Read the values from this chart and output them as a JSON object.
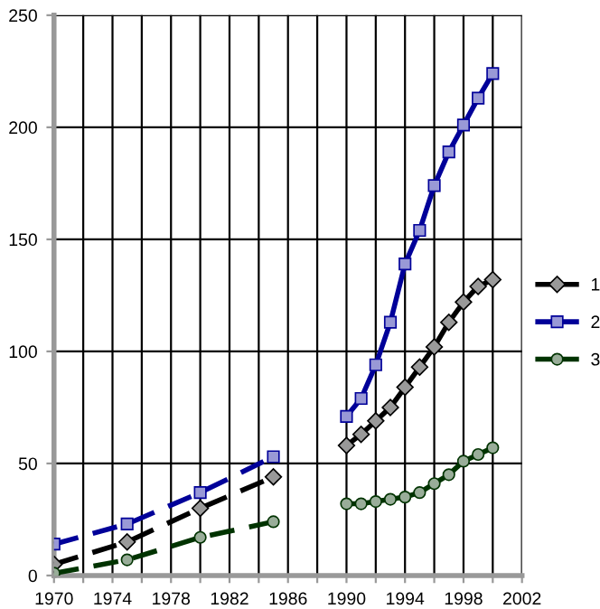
{
  "chart_data": {
    "type": "line",
    "xlim": [
      1970,
      2002
    ],
    "ylim": [
      0,
      250
    ],
    "xticks": [
      1970,
      {
        "value": 1972,
        "label": null
      },
      1974,
      {
        "value": 1976,
        "label": null
      },
      1978,
      {
        "value": 1980,
        "label": null
      },
      1982,
      {
        "value": 1984,
        "label": null
      },
      1986,
      {
        "value": 1988,
        "label": null
      },
      1990,
      {
        "value": 1992,
        "label": null
      },
      1994,
      {
        "value": 1996,
        "label": null
      },
      1998,
      {
        "value": 2000,
        "label": null
      },
      2002
    ],
    "yticks": [
      0,
      50,
      100,
      150,
      200,
      250
    ],
    "grid": true,
    "legend": "right",
    "series": [
      {
        "name": "1",
        "color": "#000000",
        "marker": "diamond",
        "line_style": "solid",
        "x": [
          1990,
          1991,
          1992,
          1993,
          1994,
          1995,
          1996,
          1997,
          1998,
          1999,
          2000
        ],
        "values": [
          58,
          63,
          69,
          75,
          84,
          93,
          102,
          113,
          122,
          129,
          132
        ]
      },
      {
        "name": "2",
        "color": "#000099",
        "marker": "square",
        "line_style": "solid",
        "x": [
          1990,
          1991,
          1992,
          1993,
          1994,
          1995,
          1996,
          1997,
          1998,
          1999,
          2000
        ],
        "values": [
          71,
          79,
          94,
          113,
          139,
          154,
          174,
          189,
          201,
          213,
          224
        ]
      },
      {
        "name": "3",
        "color": "#003300",
        "marker": "circle",
        "line_style": "solid",
        "x": [
          1990,
          1991,
          1992,
          1993,
          1994,
          1995,
          1996,
          1997,
          1998,
          1999,
          2000
        ],
        "values": [
          32,
          32,
          33,
          34,
          35,
          37,
          41,
          45,
          51,
          54,
          57
        ]
      },
      {
        "color": "#000000",
        "marker": "diamond",
        "line_style": "dashed",
        "x": [
          1970,
          1975,
          1980,
          1985
        ],
        "values": [
          5,
          15,
          30,
          44
        ]
      },
      {
        "color": "#000099",
        "marker": "square",
        "line_style": "dashed",
        "x": [
          1970,
          1975,
          1980,
          1985
        ],
        "values": [
          14,
          23,
          37,
          53
        ]
      },
      {
        "color": "#003300",
        "marker": "circle",
        "line_style": "dashed",
        "x": [
          1970,
          1975,
          1980,
          1985
        ],
        "values": [
          1,
          7,
          17,
          24
        ]
      }
    ]
  }
}
